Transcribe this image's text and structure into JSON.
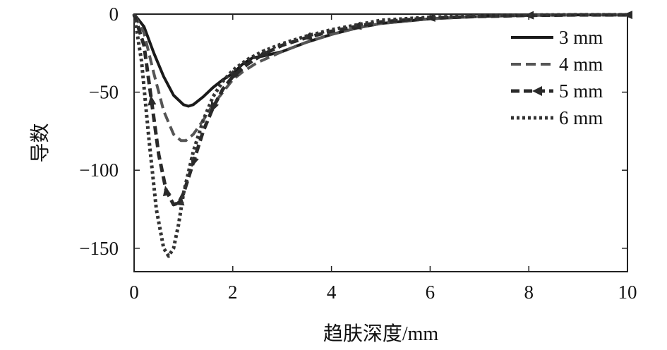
{
  "chart_data": {
    "type": "line",
    "xlabel": "趋肤深度/mm",
    "ylabel": "导数",
    "xlim": [
      0,
      10
    ],
    "ylim": [
      -165,
      0
    ],
    "xticks": [
      0,
      2,
      4,
      6,
      8,
      10
    ],
    "yticks": [
      0,
      -50,
      -100,
      -150
    ],
    "xtick_labels": [
      "0",
      "2",
      "4",
      "6",
      "8",
      "10"
    ],
    "ytick_labels": [
      "0",
      "−50",
      "−100",
      "−150"
    ],
    "grid": false,
    "legend_position": "top-right",
    "series": [
      {
        "name": "3 mm",
        "style": "solid",
        "color": "#1a1a1a",
        "x": [
          0,
          0.2,
          0.4,
          0.6,
          0.8,
          1.0,
          1.1,
          1.2,
          1.4,
          1.6,
          1.8,
          2.0,
          2.2,
          2.4,
          2.6,
          3.0,
          3.5,
          4.0,
          4.5,
          5.0,
          6.0,
          7.0,
          8.0,
          9.0,
          10.0
        ],
        "y": [
          0,
          -8,
          -25,
          -40,
          -52,
          -58,
          -59,
          -58,
          -53,
          -47,
          -42,
          -38,
          -32,
          -28,
          -27,
          -24,
          -18,
          -13,
          -9,
          -6,
          -3,
          -1.5,
          -0.8,
          -0.5,
          -0.5
        ]
      },
      {
        "name": "4 mm",
        "style": "dashed",
        "color": "#555555",
        "x": [
          0,
          0.2,
          0.4,
          0.6,
          0.8,
          0.95,
          1.05,
          1.2,
          1.4,
          1.6,
          1.8,
          2.0,
          2.2,
          2.5,
          3.0,
          3.5,
          4.0,
          4.5,
          5.0,
          6.0,
          7.0,
          8.0,
          9.0,
          10.0
        ],
        "y": [
          0,
          -12,
          -38,
          -62,
          -77,
          -81,
          -81,
          -77,
          -68,
          -58,
          -50,
          -42,
          -37,
          -31,
          -24,
          -18,
          -13,
          -9,
          -6,
          -3,
          -1.5,
          -0.8,
          -0.5,
          -0.5
        ]
      },
      {
        "name": "5 mm",
        "style": "dash-arrow",
        "color": "#2a2a2a",
        "x": [
          0,
          0.2,
          0.35,
          0.5,
          0.65,
          0.8,
          0.9,
          1.0,
          1.2,
          1.4,
          1.6,
          1.8,
          2.0,
          2.3,
          2.6,
          3.0,
          3.5,
          4.0,
          4.5,
          5.0,
          6.0,
          7.0,
          8.0,
          9.0,
          10.0
        ],
        "y": [
          0,
          -20,
          -55,
          -90,
          -113,
          -122,
          -121,
          -115,
          -95,
          -75,
          -60,
          -48,
          -40,
          -32,
          -26,
          -20,
          -15,
          -11,
          -8,
          -5,
          -2.5,
          -1.5,
          -0.8,
          -0.5,
          -0.5
        ]
      },
      {
        "name": "6 mm",
        "style": "dotted",
        "color": "#333333",
        "x": [
          0,
          0.15,
          0.3,
          0.45,
          0.6,
          0.7,
          0.8,
          0.9,
          1.0,
          1.2,
          1.4,
          1.6,
          1.8,
          2.0,
          2.3,
          2.6,
          3.0,
          3.5,
          4.0,
          4.5,
          5.0,
          6.0,
          7.0,
          8.0,
          9.0,
          10.0
        ],
        "y": [
          0,
          -30,
          -80,
          -125,
          -150,
          -155,
          -150,
          -135,
          -115,
          -88,
          -68,
          -53,
          -43,
          -36,
          -29,
          -24,
          -19,
          -14,
          -10,
          -7,
          -4,
          -2,
          -1,
          -0.6,
          -0.4,
          -0.4
        ]
      }
    ]
  }
}
